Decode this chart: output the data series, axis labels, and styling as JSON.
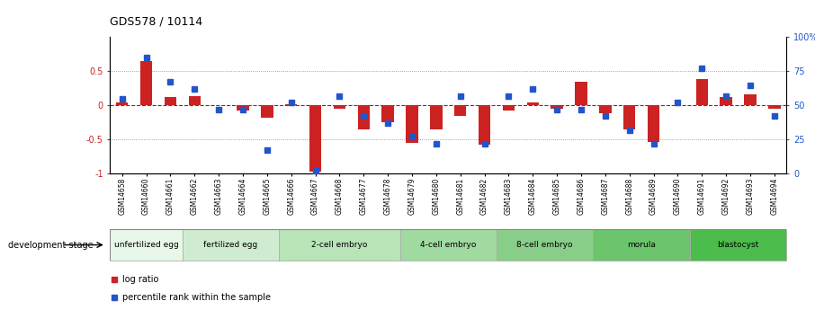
{
  "title": "GDS578 / 10114",
  "samples": [
    "GSM14658",
    "GSM14660",
    "GSM14661",
    "GSM14662",
    "GSM14663",
    "GSM14664",
    "GSM14665",
    "GSM14666",
    "GSM14667",
    "GSM14668",
    "GSM14677",
    "GSM14678",
    "GSM14679",
    "GSM14680",
    "GSM14681",
    "GSM14682",
    "GSM14683",
    "GSM14684",
    "GSM14685",
    "GSM14686",
    "GSM14687",
    "GSM14688",
    "GSM14689",
    "GSM14690",
    "GSM14691",
    "GSM14692",
    "GSM14693",
    "GSM14694"
  ],
  "log_ratio": [
    0.05,
    0.65,
    0.12,
    0.13,
    0.0,
    -0.08,
    -0.18,
    0.02,
    -0.97,
    -0.05,
    -0.35,
    -0.25,
    -0.55,
    -0.35,
    -0.15,
    -0.58,
    -0.08,
    0.05,
    -0.05,
    0.35,
    -0.12,
    -0.35,
    -0.53,
    0.0,
    0.38,
    0.12,
    0.16,
    -0.05
  ],
  "percentile": [
    55,
    85,
    67,
    62,
    47,
    47,
    17,
    52,
    2,
    57,
    42,
    37,
    27,
    22,
    57,
    22,
    57,
    62,
    47,
    47,
    42,
    32,
    22,
    52,
    77,
    57,
    65,
    42
  ],
  "stage_groups": [
    {
      "label": "unfertilized egg",
      "start": 0,
      "end": 3,
      "color": "#e8f8e8"
    },
    {
      "label": "fertilized egg",
      "start": 3,
      "end": 7,
      "color": "#d0ecd0"
    },
    {
      "label": "2-cell embryo",
      "start": 7,
      "end": 12,
      "color": "#b8e4b8"
    },
    {
      "label": "4-cell embryo",
      "start": 12,
      "end": 16,
      "color": "#a0daa0"
    },
    {
      "label": "8-cell embryo",
      "start": 16,
      "end": 20,
      "color": "#88ce88"
    },
    {
      "label": "morula",
      "start": 20,
      "end": 24,
      "color": "#6cc46c"
    },
    {
      "label": "blastocyst",
      "start": 24,
      "end": 28,
      "color": "#4cbc4c"
    }
  ],
  "bar_color": "#cc2222",
  "dot_color": "#2255cc",
  "ylim_left": [
    -1.0,
    1.0
  ],
  "ylim_right": [
    0,
    100
  ],
  "yticks_left": [
    -1.0,
    -0.5,
    0.0,
    0.5
  ],
  "ytick_labels_left": [
    "-1",
    "-0.5",
    "0",
    "0.5"
  ],
  "yticks_right": [
    0,
    25,
    50,
    75,
    100
  ],
  "ytick_labels_right": [
    "0",
    "25",
    "50",
    "75",
    "100%"
  ],
  "hline_color": "#dd0000",
  "dotted_color": "#888888",
  "dev_stage_label": "development stage",
  "legend_bar_label": "log ratio",
  "legend_dot_label": "percentile rank within the sample",
  "bg_color": "#ffffff"
}
